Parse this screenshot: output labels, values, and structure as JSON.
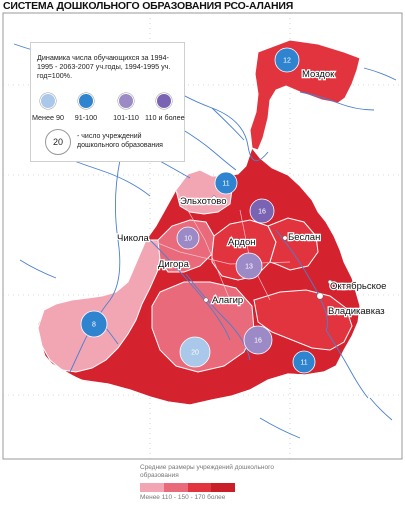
{
  "title": "СИСТЕМА ДОШКОЛЬНОГО ОБРАЗОВАНИЯ РСО-АЛАНИЯ",
  "legend": {
    "heading": "Динамика числа обучающихся за 1994-1995 - 2063-2007 уч.годы, 1994-1995 уч. год=100%.",
    "classes": [
      {
        "label": "Менее 90",
        "color": "#a9c8ea"
      },
      {
        "label": "91-100",
        "color": "#2f84cf"
      },
      {
        "label": "101-110",
        "color": "#9c8ac7"
      },
      {
        "label": "110 и более",
        "color": "#7a63b2"
      }
    ],
    "circle_sample": "20",
    "circle_text": "- число учреждений дошкольного образования"
  },
  "bottom_legend": {
    "title": "Средние размеры учреждений дошкольного образования",
    "ramp": [
      "#f2a6b3",
      "#e96a7b",
      "#e2343f",
      "#c91d28"
    ],
    "ticks": "Менее 110   -  150   -  170   более"
  },
  "cities": [
    "Моздок",
    "Эльхотово",
    "Чикола",
    "Ардон",
    "Беслан",
    "Дигора",
    "Алагир",
    "Владикавказ",
    "Октябрьское"
  ],
  "district_counts": [
    {
      "value": "12"
    },
    {
      "value": "11"
    },
    {
      "value": "16"
    },
    {
      "value": "10"
    },
    {
      "value": "13"
    },
    {
      "value": "8"
    },
    {
      "value": "20"
    },
    {
      "value": "16"
    },
    {
      "value": "11"
    }
  ],
  "colors": {
    "region_light": "#f2a6b3",
    "region_mid": "#e96a7b",
    "region_red": "#e2343f",
    "region_dark": "#d4222e",
    "river": "#4a7fd1",
    "border": "#ffffff"
  }
}
